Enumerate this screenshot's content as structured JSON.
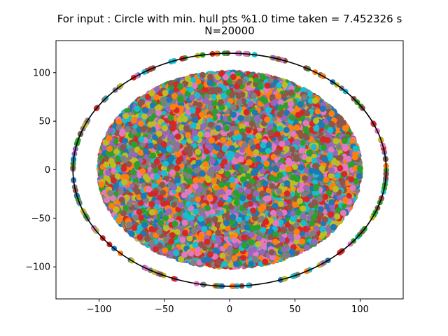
{
  "chart_data": {
    "type": "scatter",
    "title": "For input : Circle with min. hull pts %1.0 time taken = 7.452326 s",
    "subtitle": "N=20000",
    "xlim": [
      -133,
      133
    ],
    "ylim": [
      -133,
      133
    ],
    "x_ticks": [
      -100,
      -50,
      0,
      50,
      100
    ],
    "y_ticks": [
      -100,
      -50,
      0,
      50,
      100
    ],
    "x_tick_labels": [
      "−100",
      "−50",
      "0",
      "50",
      "100"
    ],
    "y_tick_labels": [
      "−100",
      "−50",
      "0",
      "50",
      "100"
    ],
    "grid": false,
    "legend": "none",
    "n_points": 20000,
    "inner_disc": {
      "center": [
        0,
        0
      ],
      "radius": 100
    },
    "hull_circle": {
      "center": [
        0,
        0
      ],
      "radius": 120,
      "color": "#000000"
    },
    "hull_point_fraction": 0.01,
    "colors": [
      "#1f77b4",
      "#ff7f0e",
      "#2ca02c",
      "#d62728",
      "#9467bd",
      "#8c564b",
      "#e377c2",
      "#7f7f7f",
      "#bcbd22",
      "#17becf"
    ]
  }
}
